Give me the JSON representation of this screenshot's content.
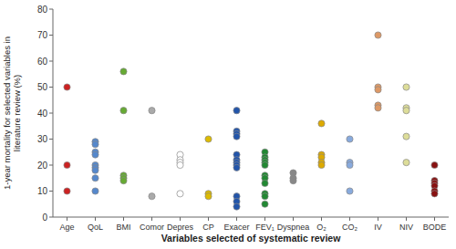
{
  "chart_data": {
    "type": "scatter",
    "categories": [
      "Age",
      "QoL",
      "BMI",
      "Comor",
      "Depres",
      "CP",
      "Exacer",
      "FEV₁",
      "Dyspnea",
      "O₂",
      "CO₂",
      "IV",
      "NIV",
      "BODE"
    ],
    "values": [
      [
        50,
        20,
        10
      ],
      [
        29,
        28,
        25,
        24,
        20,
        19,
        18,
        15,
        10
      ],
      [
        56,
        41,
        16,
        15,
        14
      ],
      [
        41,
        8
      ],
      [
        24,
        22,
        21,
        20,
        9
      ],
      [
        30,
        9,
        8
      ],
      [
        41,
        33,
        32,
        31,
        24,
        22,
        21,
        20,
        19,
        8,
        6,
        4
      ],
      [
        25,
        23,
        22,
        21,
        20,
        16,
        15,
        13,
        9,
        8,
        5
      ],
      [
        17,
        15,
        14
      ],
      [
        36,
        24,
        23,
        21,
        20
      ],
      [
        30,
        21,
        20,
        10
      ],
      [
        70,
        50,
        49,
        43,
        42
      ],
      [
        50,
        42,
        41,
        31,
        21
      ],
      [
        20,
        14,
        13,
        12,
        10,
        9
      ]
    ],
    "colors": [
      "#cc2222",
      "#5588cc",
      "#66aa33",
      "#aaaaaa",
      "#ffffff",
      "#ddbb00",
      "#2255aa",
      "#228833",
      "#888888",
      "#ddaa00",
      "#88aadd",
      "#dd9966",
      "#dddd99",
      "#881111"
    ],
    "ylabel": "1-year mortality for selected variables in\nliterature review (%)",
    "xlabel": "Variables selected of systematic review",
    "ylim": [
      0,
      80
    ],
    "yticks": [
      0,
      10,
      20,
      30,
      40,
      50,
      60,
      70,
      80
    ],
    "grid": false
  }
}
